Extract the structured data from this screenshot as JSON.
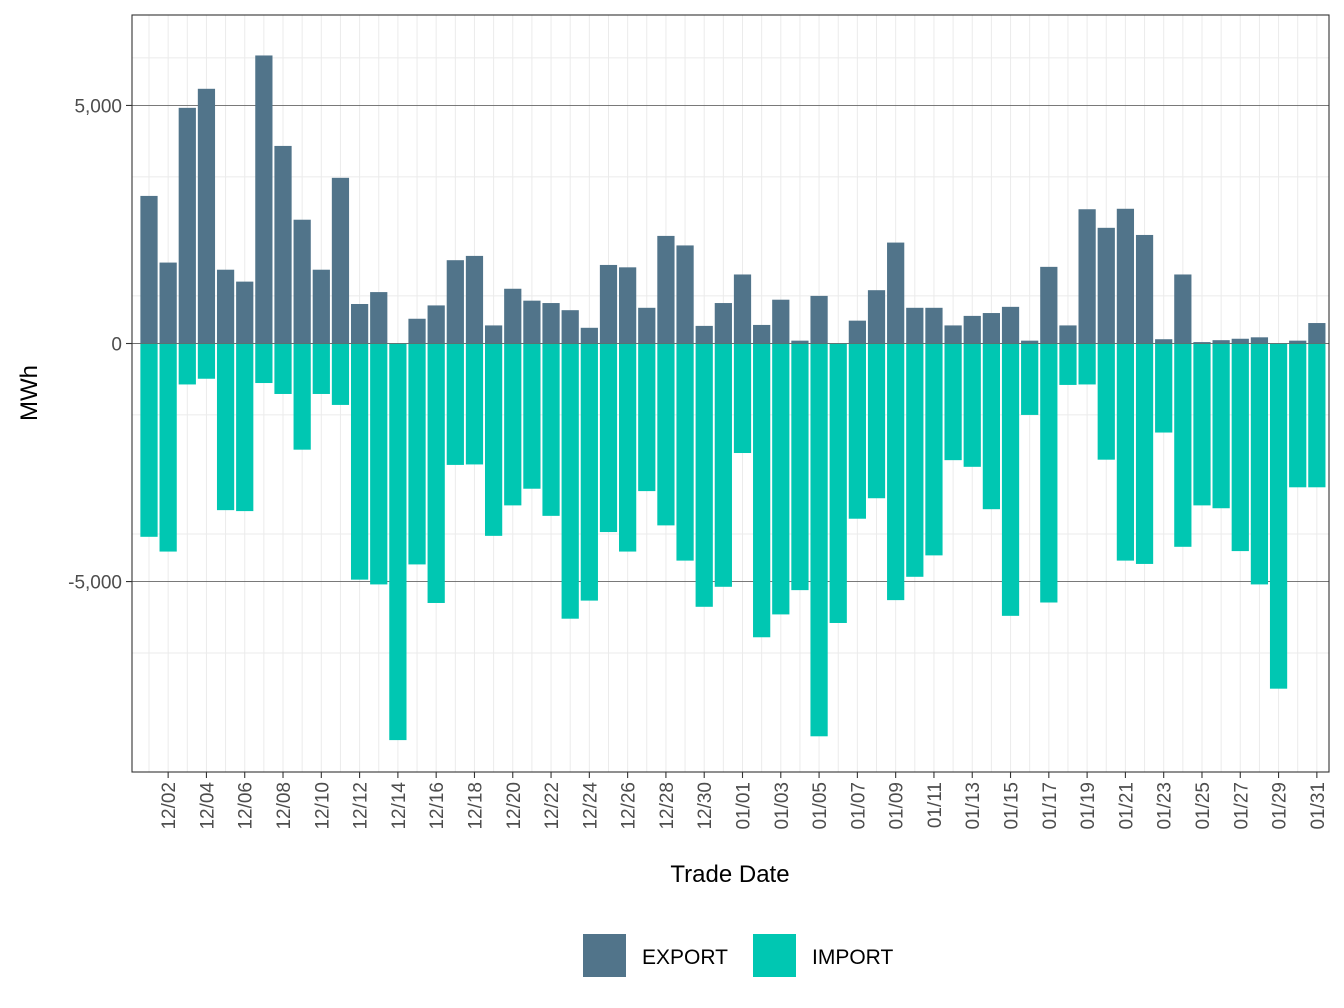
{
  "chart_data": {
    "type": "bar",
    "stacked": "diverging",
    "xlabel": "Trade Date",
    "ylabel": "MWh",
    "ylim": [
      -9000,
      6900
    ],
    "y_ticks": [
      -5000,
      0,
      5000
    ],
    "y_tick_labels": [
      "-5,000",
      "0",
      "5,000"
    ],
    "grid": true,
    "legend_position": "bottom",
    "categories": [
      "12/01",
      "12/02",
      "12/03",
      "12/04",
      "12/05",
      "12/06",
      "12/07",
      "12/08",
      "12/09",
      "12/10",
      "12/11",
      "12/12",
      "12/13",
      "12/14",
      "12/15",
      "12/16",
      "12/17",
      "12/18",
      "12/19",
      "12/20",
      "12/21",
      "12/22",
      "12/23",
      "12/24",
      "12/25",
      "12/26",
      "12/27",
      "12/28",
      "12/29",
      "12/30",
      "12/31",
      "01/01",
      "01/02",
      "01/03",
      "01/04",
      "01/05",
      "01/06",
      "01/07",
      "01/08",
      "01/09",
      "01/10",
      "01/11",
      "01/12",
      "01/13",
      "01/14",
      "01/15",
      "01/16",
      "01/17",
      "01/18",
      "01/19",
      "01/20",
      "01/21",
      "01/22",
      "01/23",
      "01/24",
      "01/25",
      "01/26",
      "01/27",
      "01/28",
      "01/29",
      "01/30",
      "01/31"
    ],
    "x_tick_labels": [
      "12/02",
      "12/04",
      "12/06",
      "12/08",
      "12/10",
      "12/12",
      "12/14",
      "12/16",
      "12/18",
      "12/20",
      "12/22",
      "12/24",
      "12/26",
      "12/28",
      "12/30",
      "01/01",
      "01/03",
      "01/05",
      "01/07",
      "01/09",
      "01/11",
      "01/13",
      "01/15",
      "01/17",
      "01/19",
      "01/21",
      "01/23",
      "01/25",
      "01/27",
      "01/29",
      "01/31"
    ],
    "series": [
      {
        "name": "EXPORT",
        "color": "#51748A",
        "values": [
          3100,
          1700,
          4950,
          5350,
          1550,
          1300,
          6050,
          4150,
          2600,
          1550,
          3480,
          830,
          1080,
          0,
          520,
          800,
          1750,
          1840,
          380,
          1150,
          900,
          850,
          700,
          330,
          1650,
          1600,
          750,
          2260,
          2060,
          370,
          850,
          1450,
          390,
          920,
          60,
          1000,
          0,
          480,
          1120,
          2120,
          750,
          750,
          380,
          580,
          640,
          770,
          60,
          1610,
          380,
          2820,
          2430,
          2830,
          2280,
          90,
          1450,
          30,
          70,
          100,
          130,
          0,
          60,
          430
        ]
      },
      {
        "name": "IMPORT",
        "color": "#00C7B2",
        "values": [
          -4060,
          -4370,
          -860,
          -740,
          -3500,
          -3520,
          -830,
          -1060,
          -2230,
          -1060,
          -1290,
          -4960,
          -5060,
          -8330,
          -4640,
          -5450,
          -2550,
          -2540,
          -4040,
          -3400,
          -3050,
          -3620,
          -5780,
          -5400,
          -3960,
          -4370,
          -3100,
          -3820,
          -4560,
          -5530,
          -5110,
          -2300,
          -6170,
          -5690,
          -5180,
          -8250,
          -5870,
          -3680,
          -3250,
          -5390,
          -4900,
          -4450,
          -2450,
          -2590,
          -3480,
          -5720,
          -1500,
          -5440,
          -870,
          -860,
          -2440,
          -4560,
          -4630,
          -1870,
          -4270,
          -3400,
          -3460,
          -4360,
          -5060,
          -7250,
          -3020,
          -3020
        ]
      }
    ]
  }
}
